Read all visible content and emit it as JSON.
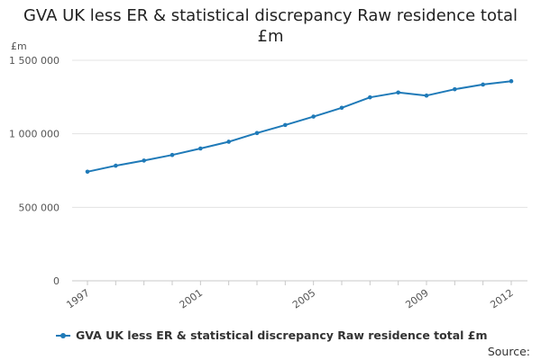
{
  "chart_data": {
    "type": "line",
    "title": "GVA UK less ER & statistical discrepancy Raw residence total",
    "title_line2": "£m",
    "ylabel": "£m",
    "xlabel": "",
    "x": [
      1997,
      1998,
      1999,
      2000,
      2001,
      2002,
      2003,
      2004,
      2005,
      2006,
      2007,
      2008,
      2009,
      2010,
      2011,
      2012
    ],
    "x_tick_labels": [
      "1997",
      "2001",
      "2005",
      "2009",
      "2012"
    ],
    "y_tick_values": [
      0,
      500000,
      1000000,
      1500000
    ],
    "y_tick_labels": [
      "0",
      "500 000",
      "1 000 000",
      "1 500 000"
    ],
    "ylim": [
      0,
      1500000
    ],
    "grid": true,
    "legend_position": "bottom-left",
    "series": [
      {
        "name": "GVA UK less ER & statistical discrepancy Raw residence total £m",
        "color": "#1f7ab8",
        "values": [
          742000,
          783000,
          818000,
          856000,
          900000,
          946000,
          1005000,
          1060000,
          1117000,
          1177000,
          1248000,
          1281000,
          1260000,
          1303000,
          1335000,
          1358000
        ]
      }
    ],
    "source_label": "Source:"
  }
}
